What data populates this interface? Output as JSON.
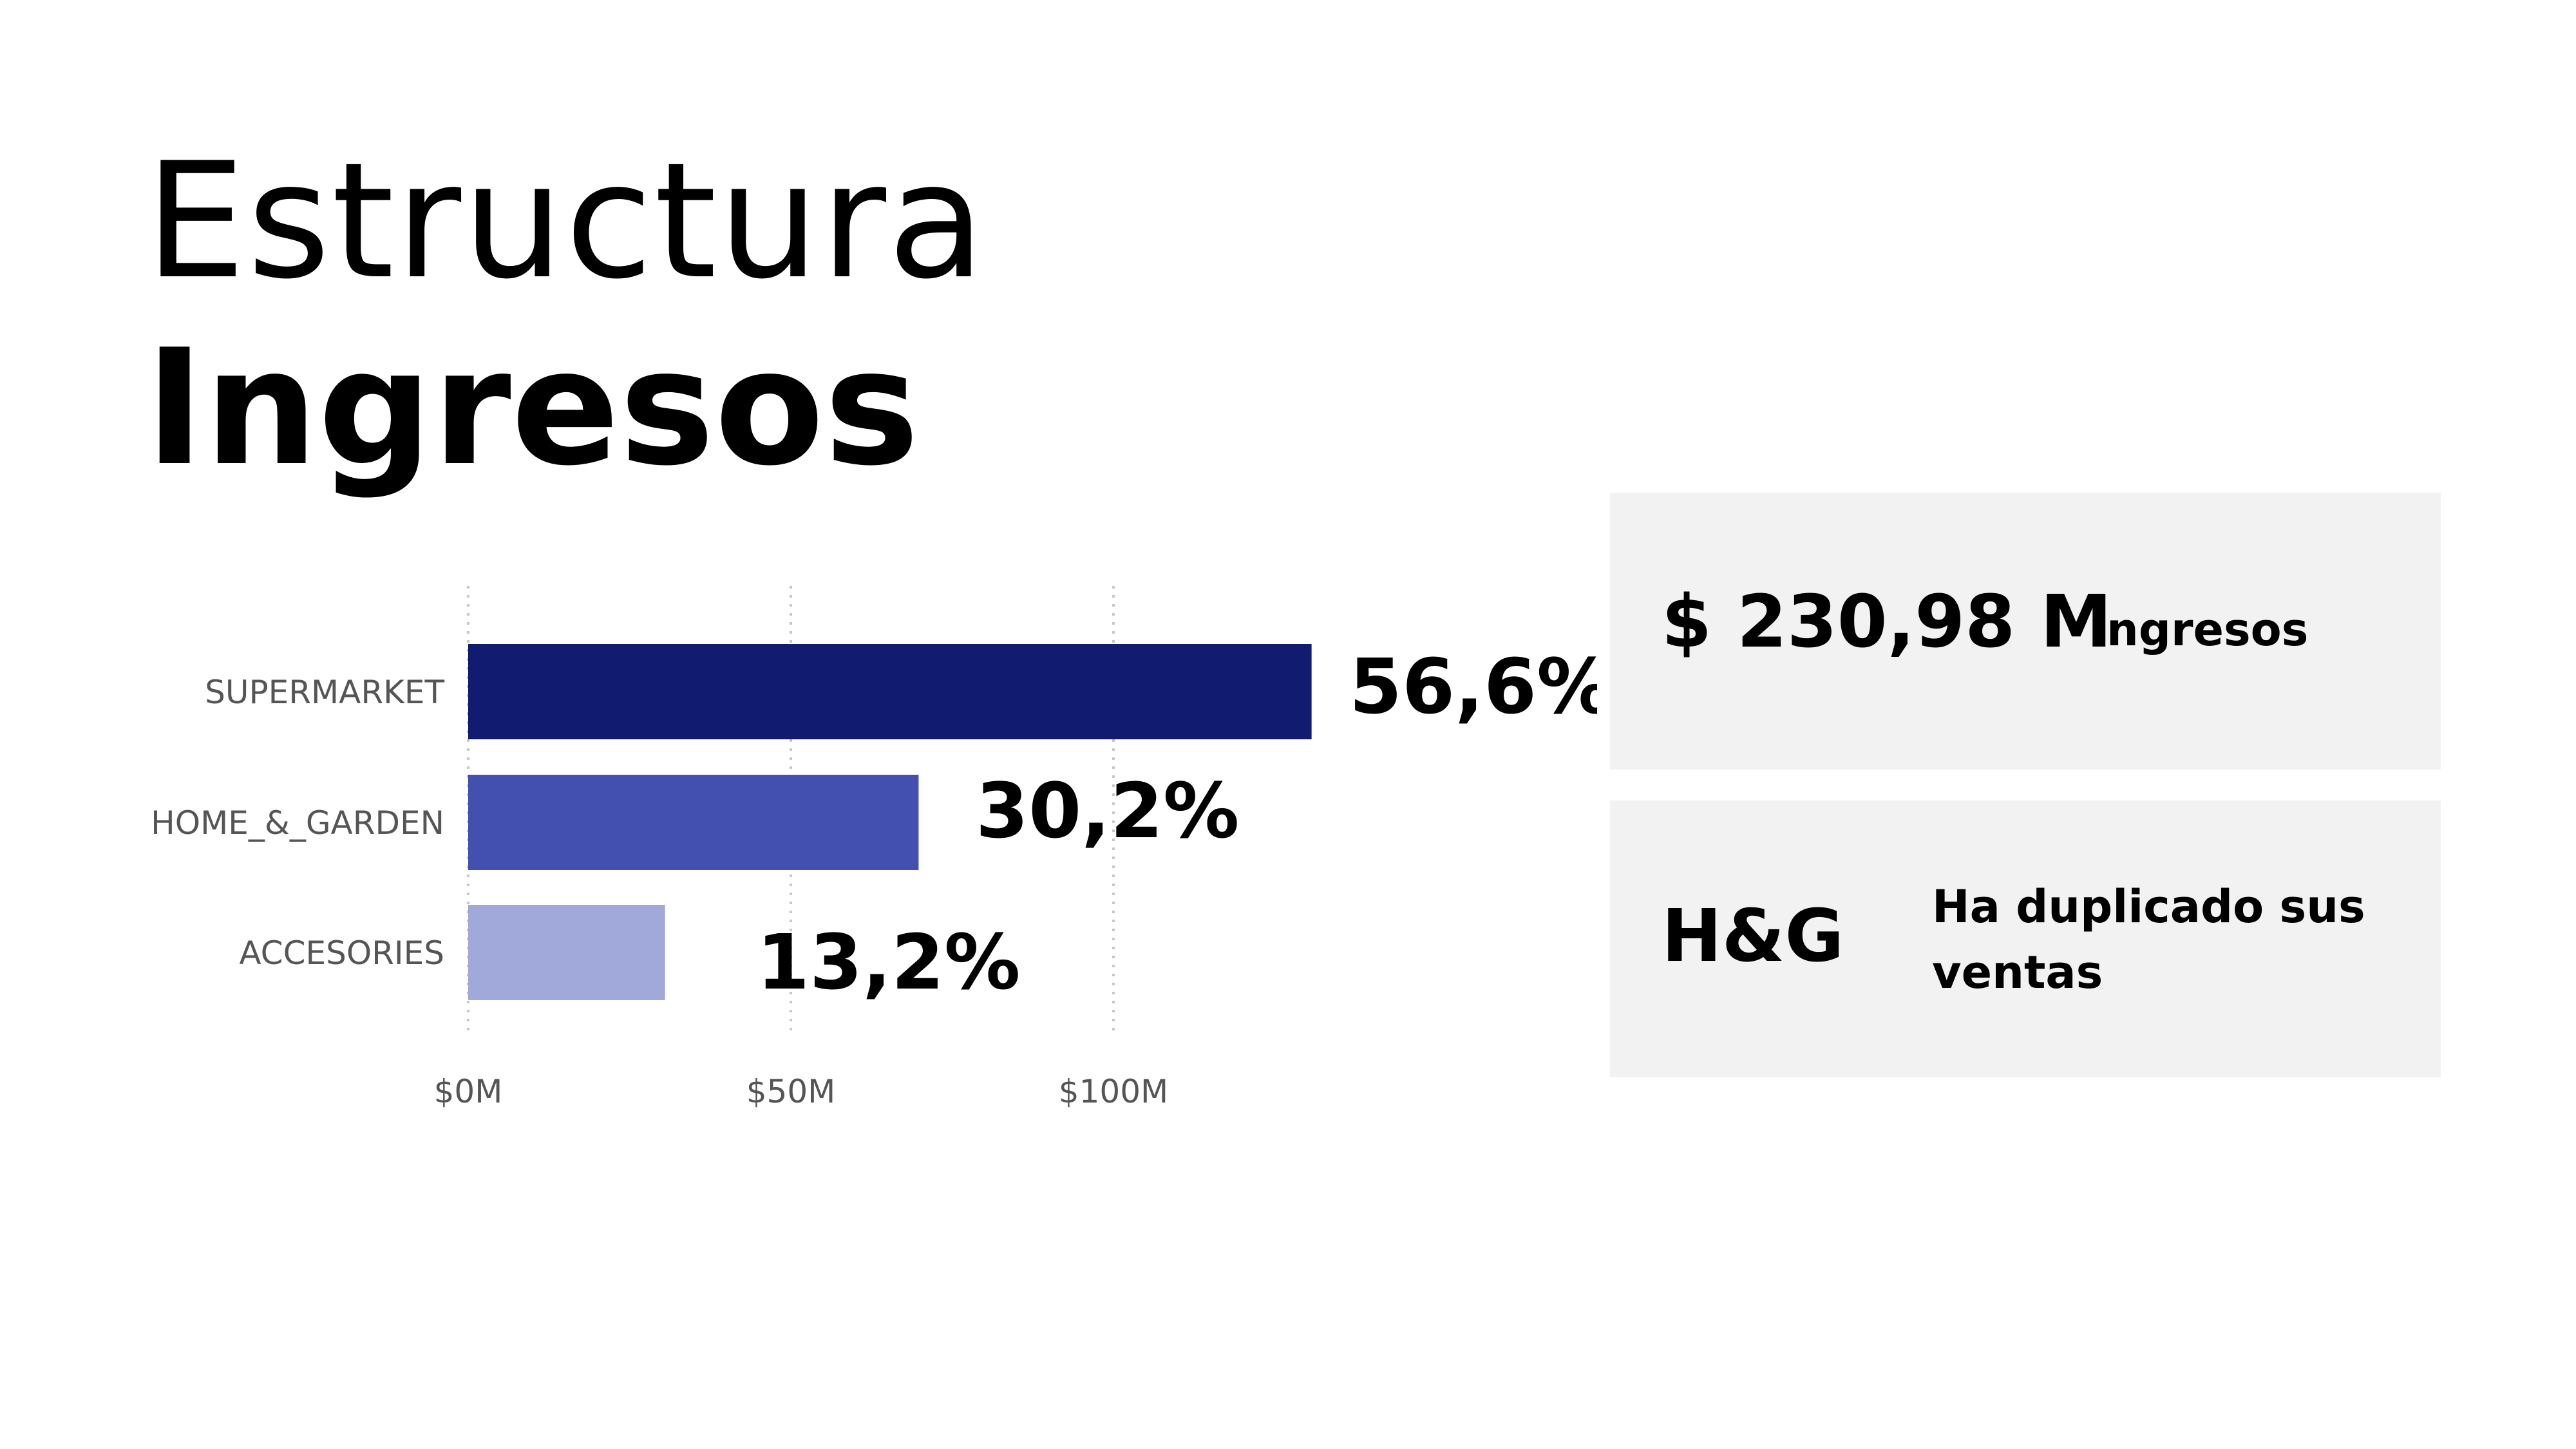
{
  "title": {
    "line1": "Estructura",
    "line2": "Ingresos"
  },
  "chart_data": {
    "type": "bar",
    "orientation": "horizontal",
    "categories": [
      "SUPERMARKET",
      "HOME_&_GARDEN",
      "ACCESORIES"
    ],
    "values": [
      130.7,
      69.8,
      30.5
    ],
    "percent_labels": [
      "56,6%",
      "30,2%",
      "13,2%"
    ],
    "colors": [
      "#111b70",
      "#4350b0",
      "#a1a8da"
    ],
    "x_ticks": [
      {
        "value": 0,
        "label": "$0M"
      },
      {
        "value": 50,
        "label": "$50M"
      },
      {
        "value": 100,
        "label": "$100M"
      }
    ],
    "xlim": [
      0,
      130.7
    ],
    "grid": "vertical dotted",
    "title": "",
    "xlabel": "",
    "ylabel": ""
  },
  "kpi": {
    "value": "$ 230,98 M",
    "label": "Ingresos"
  },
  "note": {
    "head": "H&G",
    "text": "Ha duplicado sus ventas"
  }
}
